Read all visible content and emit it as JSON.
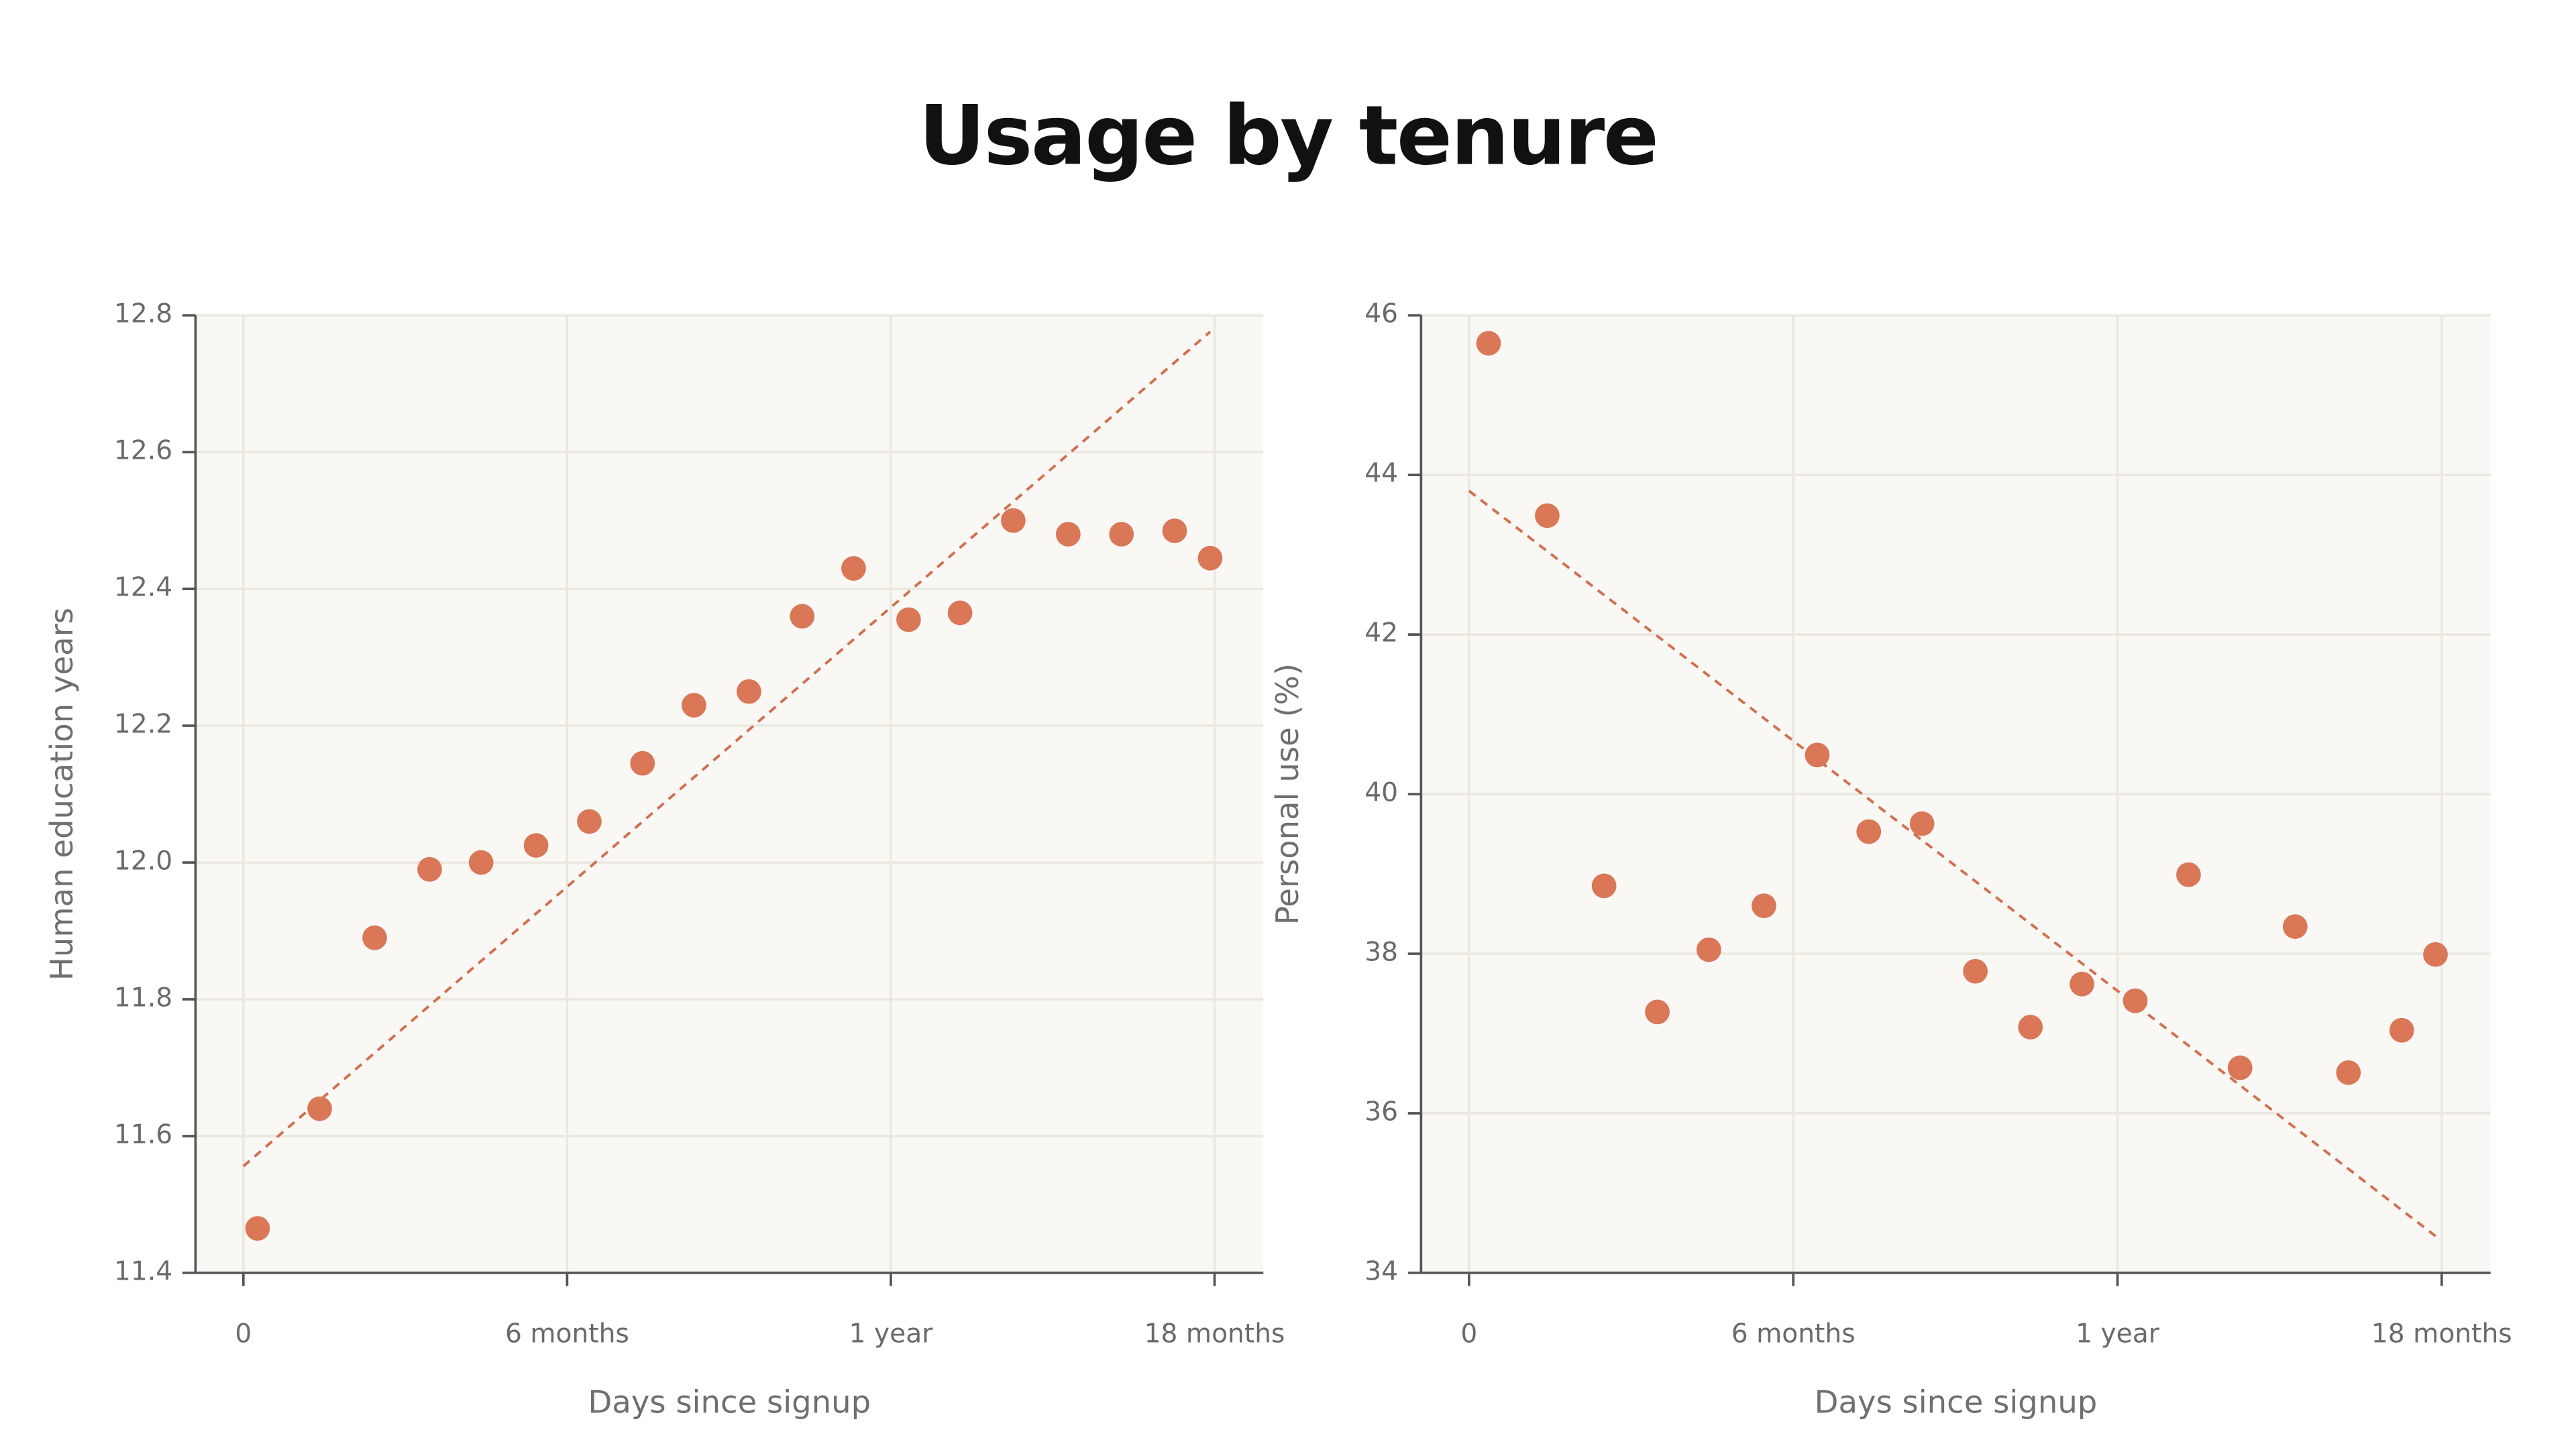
{
  "title": "Usage by tenure",
  "chart_data": [
    {
      "type": "scatter",
      "x_label": "Days since signup",
      "y_label": "Human education years",
      "x": [
        8,
        43,
        74,
        105,
        134,
        165,
        195,
        225,
        254,
        285,
        315,
        344,
        375,
        404,
        434,
        465,
        495,
        525,
        545
      ],
      "values": [
        11.465,
        11.64,
        11.89,
        11.99,
        12.0,
        12.025,
        12.06,
        12.145,
        12.23,
        12.25,
        12.36,
        12.43,
        12.355,
        12.365,
        12.5,
        12.48,
        12.48,
        12.485,
        12.445
      ],
      "color": "#d97757",
      "trend_line": {
        "x": [
          0,
          545
        ],
        "y": [
          11.556,
          12.776
        ],
        "color": "#d0704f",
        "style": "dashed"
      },
      "xlim": [
        -27,
        575
      ],
      "ylim": [
        11.4,
        12.8
      ],
      "xticks": [
        0,
        {
          "value": 182.5,
          "label": "6 months"
        },
        {
          "value": 365,
          "label": "1 year"
        },
        {
          "value": 547.5,
          "label": "18 months"
        }
      ],
      "yticks": [
        11.4,
        11.6,
        11.8,
        {
          "value": 12,
          "label": "12.0"
        },
        12.2,
        12.4,
        12.6,
        12.8
      ],
      "grid": true
    },
    {
      "type": "scatter",
      "x_label": "Days since signup",
      "y_label": "Personal use (%)",
      "x": [
        11,
        44,
        76,
        106,
        135,
        166,
        196,
        225,
        255,
        285,
        316,
        345,
        375,
        405,
        434,
        465,
        495,
        525,
        544
      ],
      "values": [
        45.65,
        43.49,
        38.85,
        37.27,
        38.05,
        38.6,
        40.49,
        39.53,
        39.63,
        37.78,
        37.08,
        37.62,
        37.41,
        38.99,
        36.57,
        38.34,
        36.51,
        37.04,
        37.99
      ],
      "color": "#d97757",
      "trend_line": {
        "x": [
          0,
          547
        ],
        "y": [
          43.8,
          34.41
        ],
        "color": "#d0704f",
        "style": "dashed"
      },
      "xlim": [
        -27,
        575
      ],
      "ylim": [
        34,
        46
      ],
      "xticks": [
        0,
        {
          "value": 182.5,
          "label": "6 months"
        },
        {
          "value": 365,
          "label": "1 year"
        },
        {
          "value": 547.5,
          "label": "18 months"
        }
      ],
      "yticks": [
        34,
        36,
        38,
        40,
        42,
        44,
        46
      ],
      "grid": true
    }
  ]
}
